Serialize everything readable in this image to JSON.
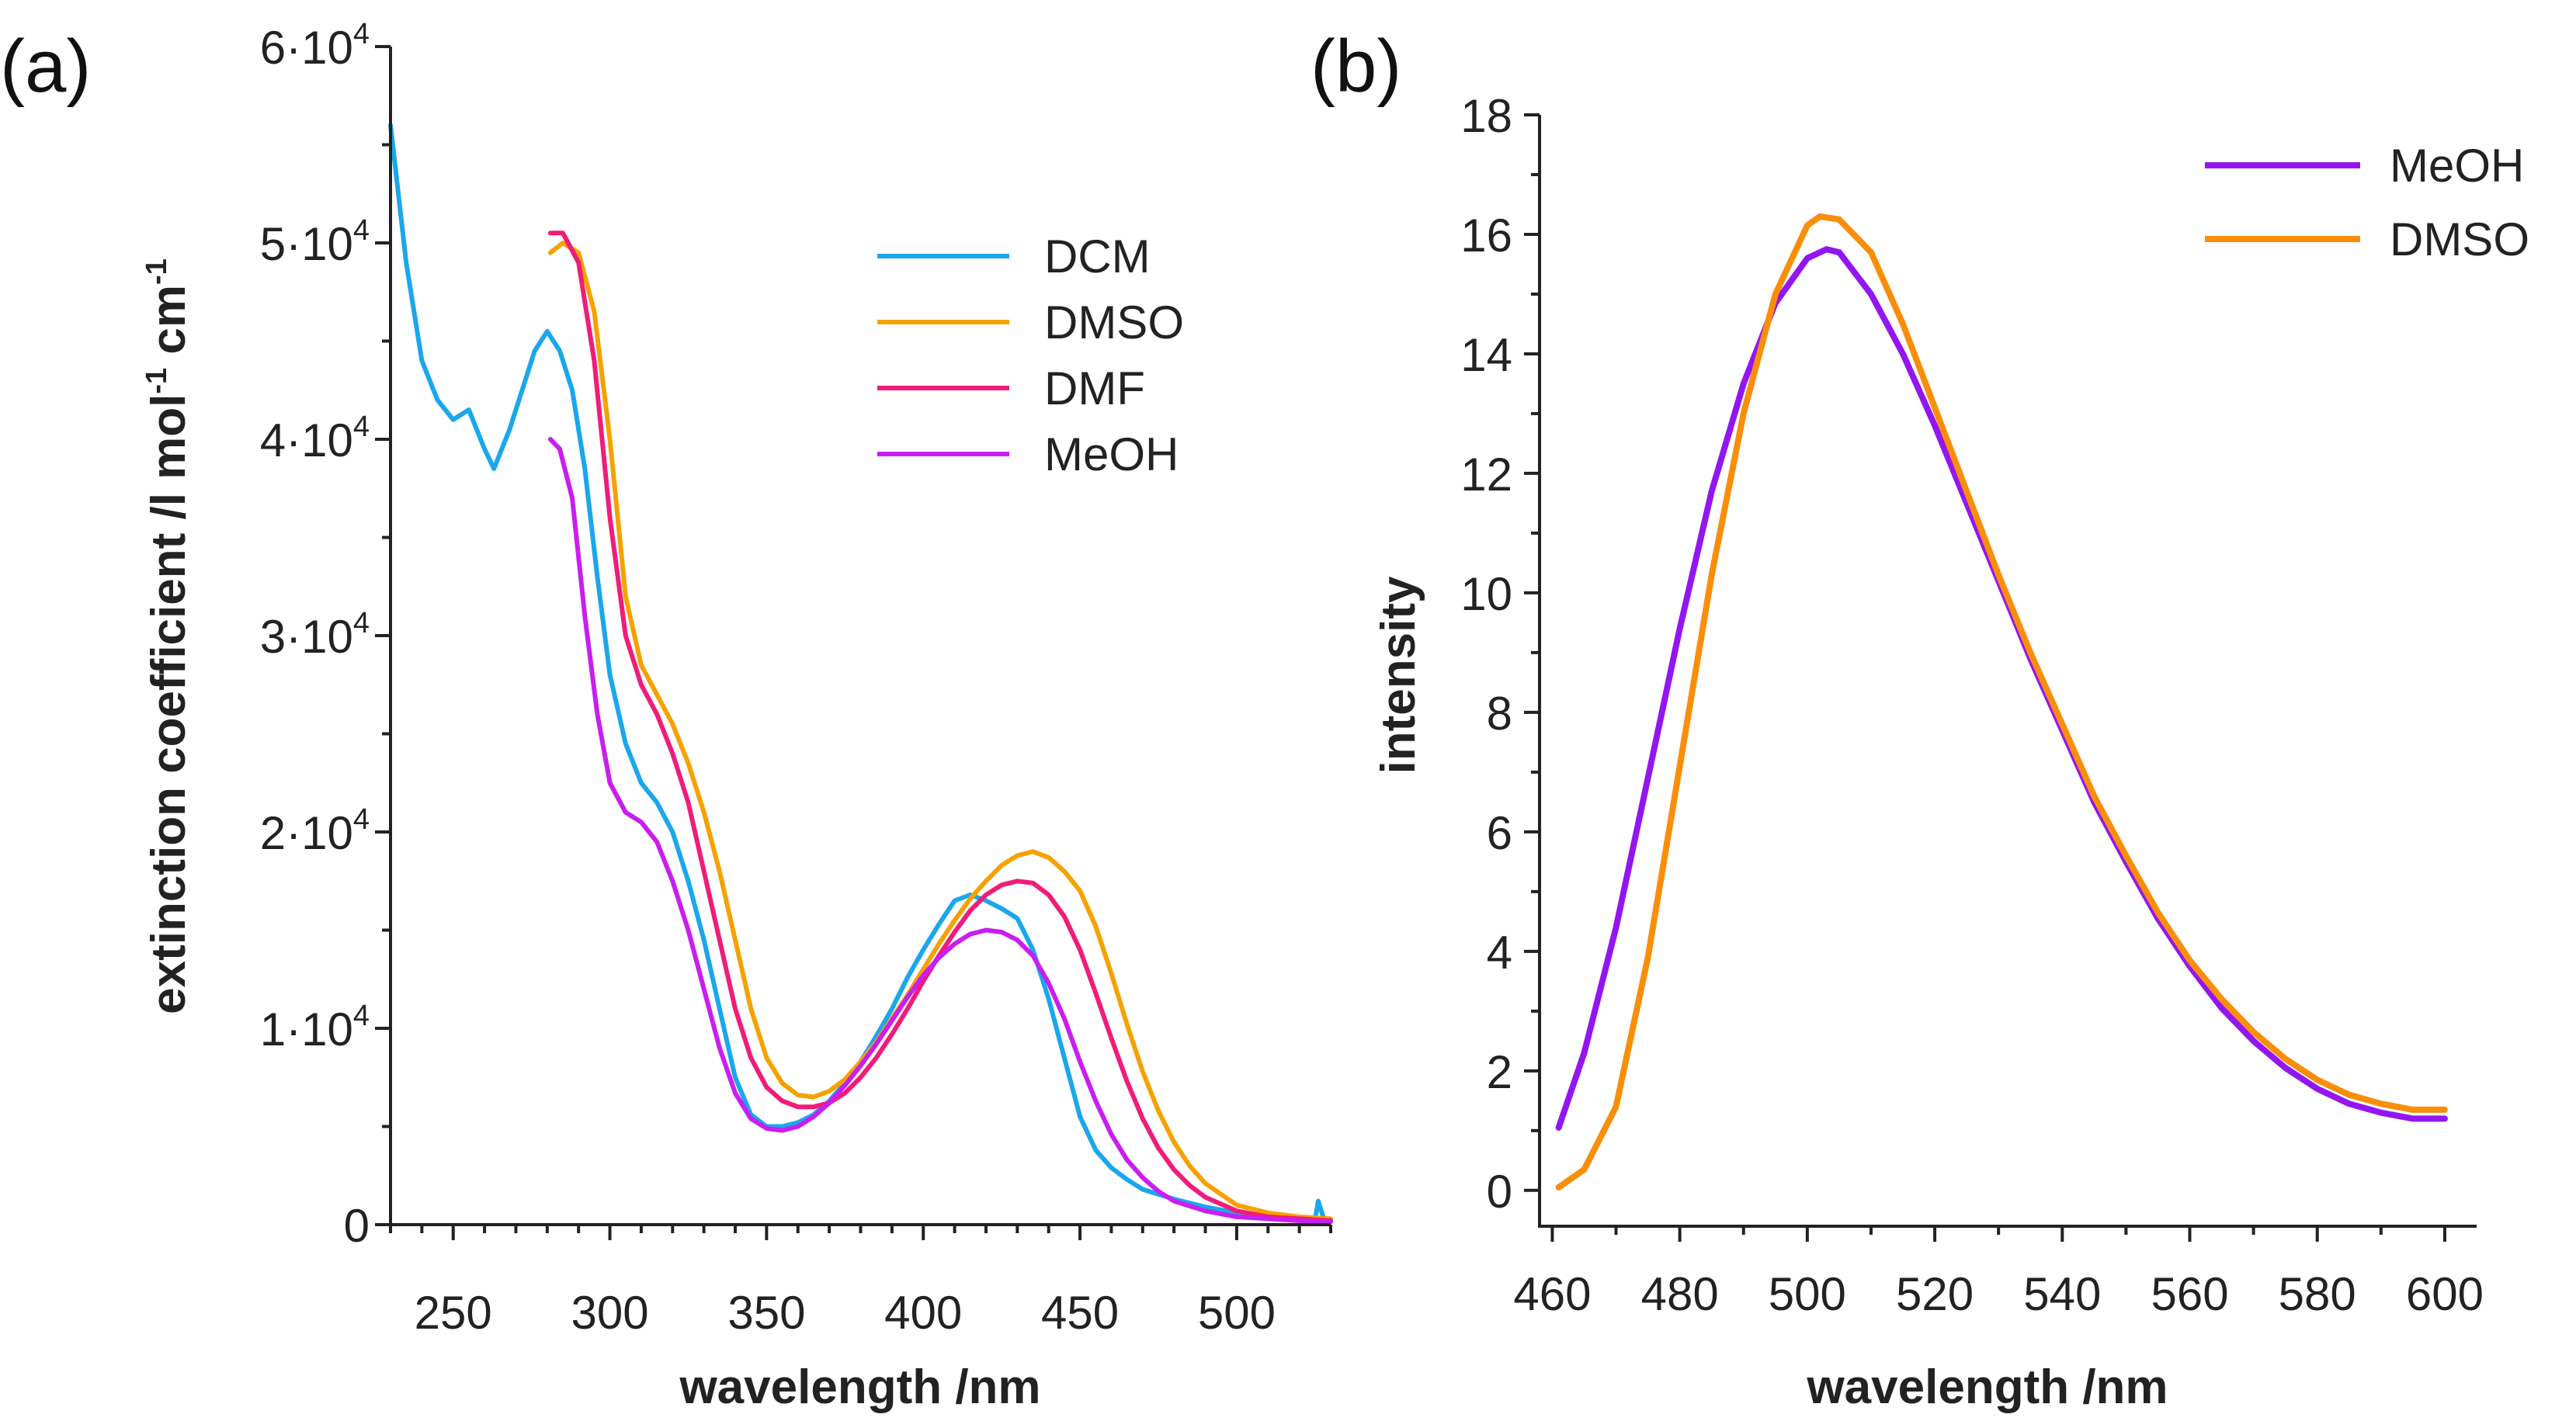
{
  "chart_data": [
    {
      "panel_label": "(a)",
      "type": "line",
      "xlabel": "wavelength /nm",
      "ylabel": {
        "main": "extinction coefficient /l mol",
        "sup1": "-1",
        "mid": " cm",
        "sup2": "-1"
      },
      "xlim": [
        230,
        530
      ],
      "ylim": [
        0,
        60000
      ],
      "x_ticks": [
        250,
        300,
        350,
        400,
        450,
        500
      ],
      "y_ticks": [
        {
          "value": 0,
          "base": "0",
          "exp": ""
        },
        {
          "value": 10000,
          "base": "1·10",
          "exp": "4"
        },
        {
          "value": 20000,
          "base": "2·10",
          "exp": "4"
        },
        {
          "value": 30000,
          "base": "3·10",
          "exp": "4"
        },
        {
          "value": 40000,
          "base": "4·10",
          "exp": "4"
        },
        {
          "value": 50000,
          "base": "5·10",
          "exp": "4"
        },
        {
          "value": 60000,
          "base": "6·10",
          "exp": "4"
        }
      ],
      "legend_position": "top-right",
      "series": [
        {
          "name": "DCM",
          "color": "#1aa7ec",
          "x": [
            230,
            235,
            240,
            245,
            250,
            255,
            260,
            263,
            268,
            272,
            276,
            280,
            284,
            288,
            292,
            296,
            300,
            305,
            310,
            315,
            320,
            325,
            330,
            335,
            340,
            345,
            350,
            355,
            360,
            365,
            370,
            375,
            380,
            385,
            390,
            395,
            400,
            405,
            410,
            415,
            420,
            425,
            430,
            435,
            440,
            445,
            450,
            455,
            460,
            465,
            470,
            480,
            490,
            500,
            510,
            520,
            525,
            526,
            528,
            530
          ],
          "y": [
            56000,
            49000,
            44000,
            42000,
            41000,
            41500,
            39500,
            38500,
            40500,
            42500,
            44500,
            45500,
            44500,
            42500,
            38500,
            33000,
            28000,
            24500,
            22500,
            21500,
            20000,
            17500,
            14500,
            11000,
            7500,
            5600,
            5000,
            5000,
            5200,
            5600,
            6300,
            7200,
            8300,
            9600,
            11000,
            12600,
            14000,
            15300,
            16500,
            16800,
            16500,
            16100,
            15600,
            14000,
            11500,
            8500,
            5500,
            3800,
            2900,
            2300,
            1800,
            1300,
            900,
            600,
            400,
            300,
            250,
            1200,
            200,
            150
          ]
        },
        {
          "name": "DMSO",
          "color": "#f5a201",
          "x": [
            281,
            285,
            290,
            295,
            300,
            305,
            310,
            315,
            320,
            325,
            330,
            335,
            340,
            345,
            350,
            355,
            360,
            365,
            370,
            375,
            380,
            385,
            390,
            395,
            400,
            405,
            410,
            415,
            420,
            425,
            430,
            435,
            440,
            445,
            450,
            455,
            460,
            465,
            470,
            475,
            480,
            485,
            490,
            500,
            510,
            520,
            530
          ],
          "y": [
            49500,
            50000,
            49500,
            46500,
            40000,
            32000,
            28500,
            27000,
            25500,
            23500,
            21000,
            18000,
            14500,
            11000,
            8500,
            7200,
            6600,
            6500,
            6800,
            7400,
            8300,
            9300,
            10500,
            11700,
            13000,
            14300,
            15500,
            16600,
            17500,
            18300,
            18800,
            19000,
            18700,
            18000,
            17000,
            15200,
            12800,
            10200,
            7800,
            5800,
            4200,
            3000,
            2100,
            1000,
            600,
            400,
            300
          ]
        },
        {
          "name": "DMF",
          "color": "#f01c7a",
          "x": [
            281,
            285,
            290,
            295,
            300,
            305,
            310,
            315,
            320,
            325,
            330,
            335,
            340,
            345,
            350,
            355,
            360,
            365,
            370,
            375,
            380,
            385,
            390,
            395,
            400,
            405,
            410,
            415,
            420,
            425,
            430,
            435,
            440,
            445,
            450,
            455,
            460,
            465,
            470,
            475,
            480,
            485,
            490,
            500,
            510,
            520,
            530
          ],
          "y": [
            50500,
            50500,
            49000,
            44000,
            36000,
            30000,
            27500,
            26000,
            24000,
            21500,
            18000,
            14500,
            11000,
            8500,
            7000,
            6300,
            6000,
            6000,
            6200,
            6700,
            7500,
            8500,
            9700,
            11000,
            12400,
            13700,
            14900,
            16000,
            16800,
            17300,
            17500,
            17400,
            16800,
            15700,
            14000,
            11800,
            9500,
            7300,
            5400,
            3900,
            2800,
            2000,
            1400,
            700,
            400,
            300,
            200
          ]
        },
        {
          "name": "MeOH",
          "color": "#c91ef0",
          "x": [
            281,
            284,
            288,
            292,
            296,
            300,
            305,
            310,
            315,
            320,
            325,
            330,
            335,
            340,
            345,
            350,
            355,
            360,
            365,
            370,
            375,
            380,
            385,
            390,
            395,
            400,
            405,
            410,
            415,
            420,
            425,
            430,
            435,
            440,
            445,
            450,
            455,
            460,
            465,
            470,
            475,
            480,
            490,
            500,
            510,
            520,
            530
          ],
          "y": [
            40000,
            39500,
            37000,
            31000,
            26000,
            22500,
            21000,
            20500,
            19500,
            17500,
            15000,
            12000,
            9000,
            6700,
            5400,
            4900,
            4800,
            5000,
            5500,
            6200,
            7100,
            8100,
            9200,
            10400,
            11600,
            12700,
            13600,
            14300,
            14800,
            15000,
            14900,
            14500,
            13700,
            12300,
            10500,
            8300,
            6300,
            4600,
            3300,
            2400,
            1700,
            1200,
            700,
            400,
            300,
            200,
            150
          ]
        }
      ]
    },
    {
      "panel_label": "(b)",
      "type": "line",
      "xlabel": "wavelength /nm",
      "ylabel": "intensity",
      "xlim": [
        458,
        605
      ],
      "ylim": [
        -0.6,
        18
      ],
      "x_ticks": [
        460,
        480,
        500,
        520,
        540,
        560,
        580,
        600
      ],
      "y_ticks": [
        0,
        2,
        4,
        6,
        8,
        10,
        12,
        14,
        16,
        18
      ],
      "legend_position": "top-right",
      "series": [
        {
          "name": "MeOH",
          "color": "#9316f0",
          "x": [
            461,
            465,
            470,
            475,
            480,
            485,
            490,
            495,
            500,
            503,
            505,
            510,
            515,
            520,
            525,
            530,
            535,
            540,
            545,
            550,
            555,
            560,
            565,
            570,
            575,
            580,
            585,
            590,
            595,
            600
          ],
          "y": [
            1.05,
            2.3,
            4.4,
            6.9,
            9.4,
            11.7,
            13.5,
            14.85,
            15.6,
            15.75,
            15.7,
            15.0,
            14.0,
            12.8,
            11.5,
            10.2,
            8.9,
            7.7,
            6.5,
            5.5,
            4.55,
            3.75,
            3.05,
            2.5,
            2.05,
            1.7,
            1.45,
            1.3,
            1.2,
            1.2
          ]
        },
        {
          "name": "DMSO",
          "color": "#f98e0a",
          "x": [
            461,
            465,
            470,
            475,
            480,
            485,
            490,
            495,
            500,
            502,
            505,
            510,
            515,
            520,
            525,
            530,
            535,
            540,
            545,
            550,
            555,
            560,
            565,
            570,
            575,
            580,
            585,
            590,
            595,
            600
          ],
          "y": [
            0.05,
            0.35,
            1.4,
            3.9,
            7.1,
            10.3,
            13.0,
            15.0,
            16.15,
            16.3,
            16.25,
            15.7,
            14.5,
            13.1,
            11.7,
            10.3,
            9.0,
            7.8,
            6.6,
            5.6,
            4.65,
            3.85,
            3.2,
            2.65,
            2.2,
            1.85,
            1.6,
            1.45,
            1.35,
            1.35
          ]
        }
      ]
    }
  ]
}
